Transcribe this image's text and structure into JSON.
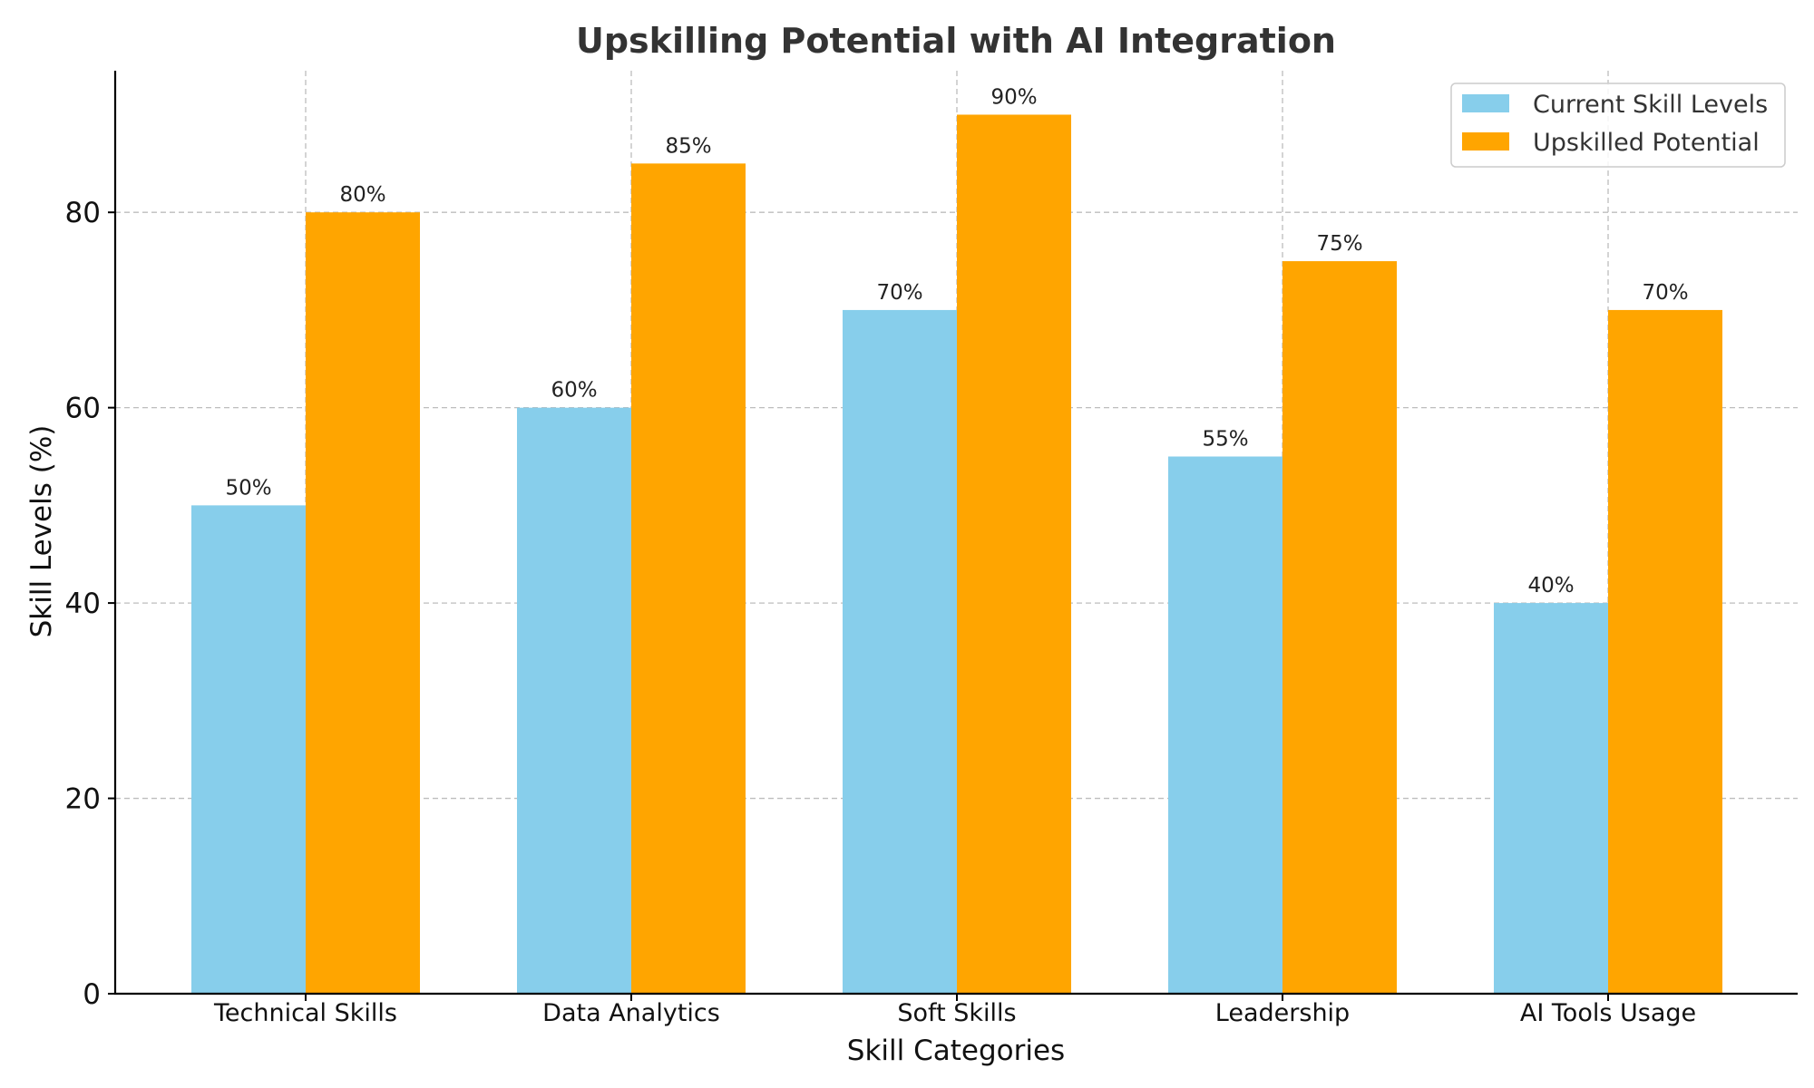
{
  "chart_data": {
    "type": "bar",
    "title": "Upskilling Potential with AI Integration",
    "xlabel": "Skill Categories",
    "ylabel": "Skill Levels (%)",
    "categories": [
      "Technical Skills",
      "Data Analytics",
      "Soft Skills",
      "Leadership",
      "AI Tools Usage"
    ],
    "series": [
      {
        "name": "Current Skill Levels",
        "color": "#87CEEB",
        "values": [
          50,
          60,
          70,
          55,
          40
        ],
        "labels": [
          "50%",
          "60%",
          "70%",
          "55%",
          "40%"
        ]
      },
      {
        "name": "Upskilled Potential",
        "color": "#FFA500",
        "values": [
          80,
          85,
          90,
          75,
          70
        ],
        "labels": [
          "80%",
          "85%",
          "90%",
          "75%",
          "70%"
        ]
      }
    ],
    "ylim": [
      0,
      94.5
    ],
    "yticks": [
      0,
      20,
      40,
      60,
      80
    ],
    "ytick_labels": [
      "0",
      "20",
      "40",
      "60",
      "80"
    ],
    "grid": true,
    "legend_position": "top-right"
  }
}
